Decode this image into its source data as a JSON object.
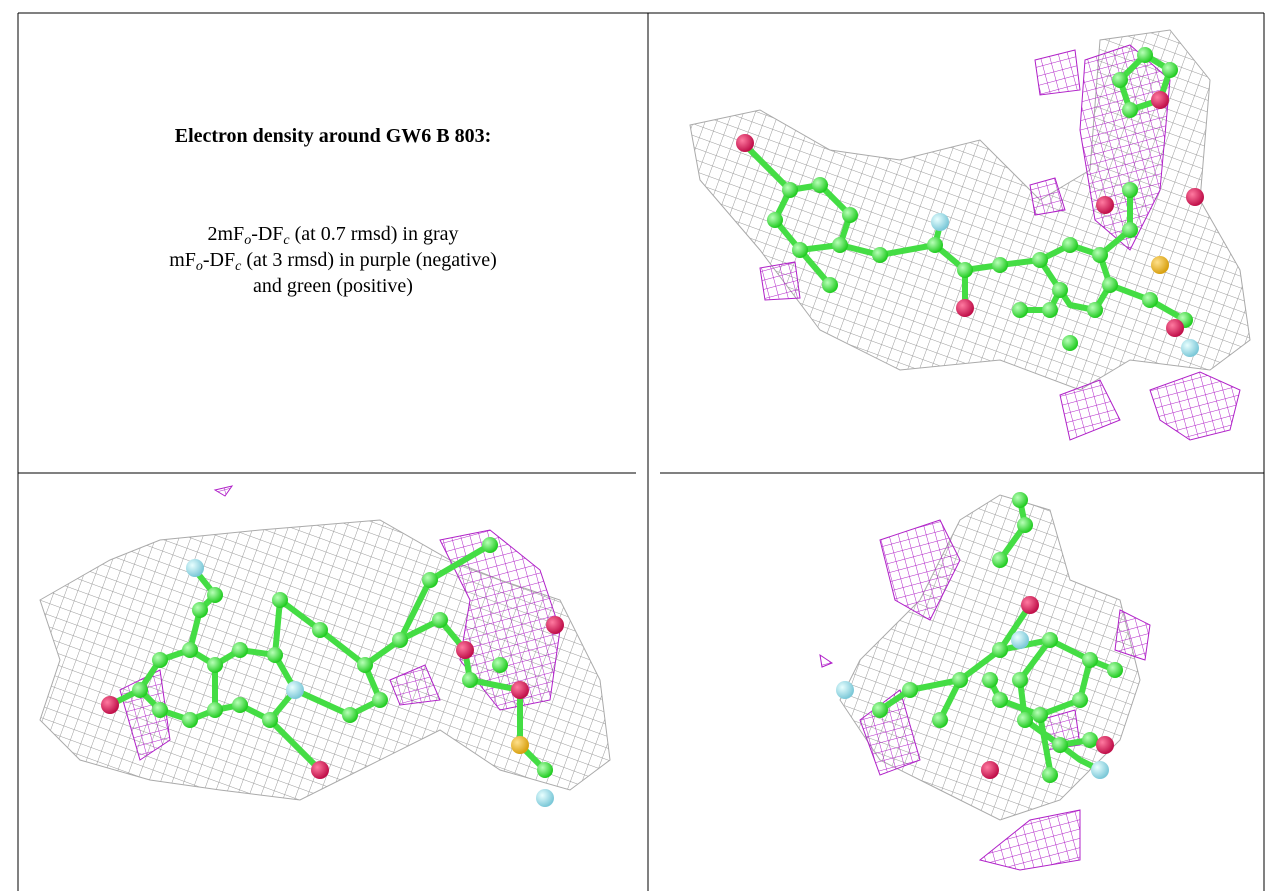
{
  "description": {
    "title": "Electron density around GW6 B 803:",
    "line1": [
      "2mF",
      "o",
      "-DF",
      "c",
      " (at 0.7 rmsd) in gray"
    ],
    "line2": [
      "mF",
      "o",
      "-DF",
      "c",
      " (at 3 rmsd) in purple (negative)"
    ],
    "line3": "and green (positive)"
  }
}
